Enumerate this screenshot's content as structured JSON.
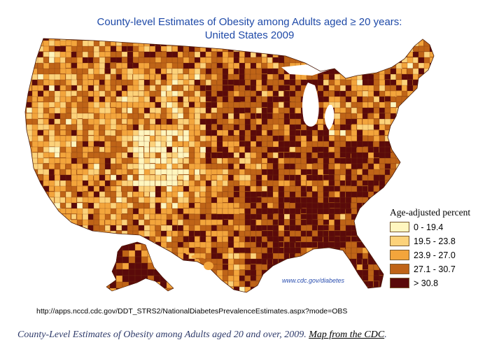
{
  "map": {
    "title_line1": "County-level Estimates of Obesity among Adults aged ≥ 20 years:",
    "title_line2": "United States 2009",
    "credit": "www.cdc.gov/diabetes",
    "url": "http://apps.nccd.cdc.gov/DDT_STRS2/NationalDiabetesPrevalenceEstimates.aspx?mode=OBS",
    "colors": {
      "class1": "#fff6bf",
      "class2": "#fcd27a",
      "class3": "#f3a53c",
      "class4": "#bf6417",
      "class5": "#5a0a0a"
    }
  },
  "legend": {
    "title": "Age-adjusted percent",
    "items": [
      {
        "label": "0 - 19.4",
        "color": "#fff6bf"
      },
      {
        "label": "19.5 - 23.8",
        "color": "#fcd27a"
      },
      {
        "label": "23.9 - 27.0",
        "color": "#f3a53c"
      },
      {
        "label": "27.1 - 30.7",
        "color": "#bf6417"
      },
      {
        "label": "> 30.8",
        "color": "#5a0a0a"
      }
    ]
  },
  "caption": {
    "text": "County-Level Estimates of Obesity among Adults aged 20 and over, 2009.",
    "link": "Map from the CDC",
    "end": "."
  }
}
